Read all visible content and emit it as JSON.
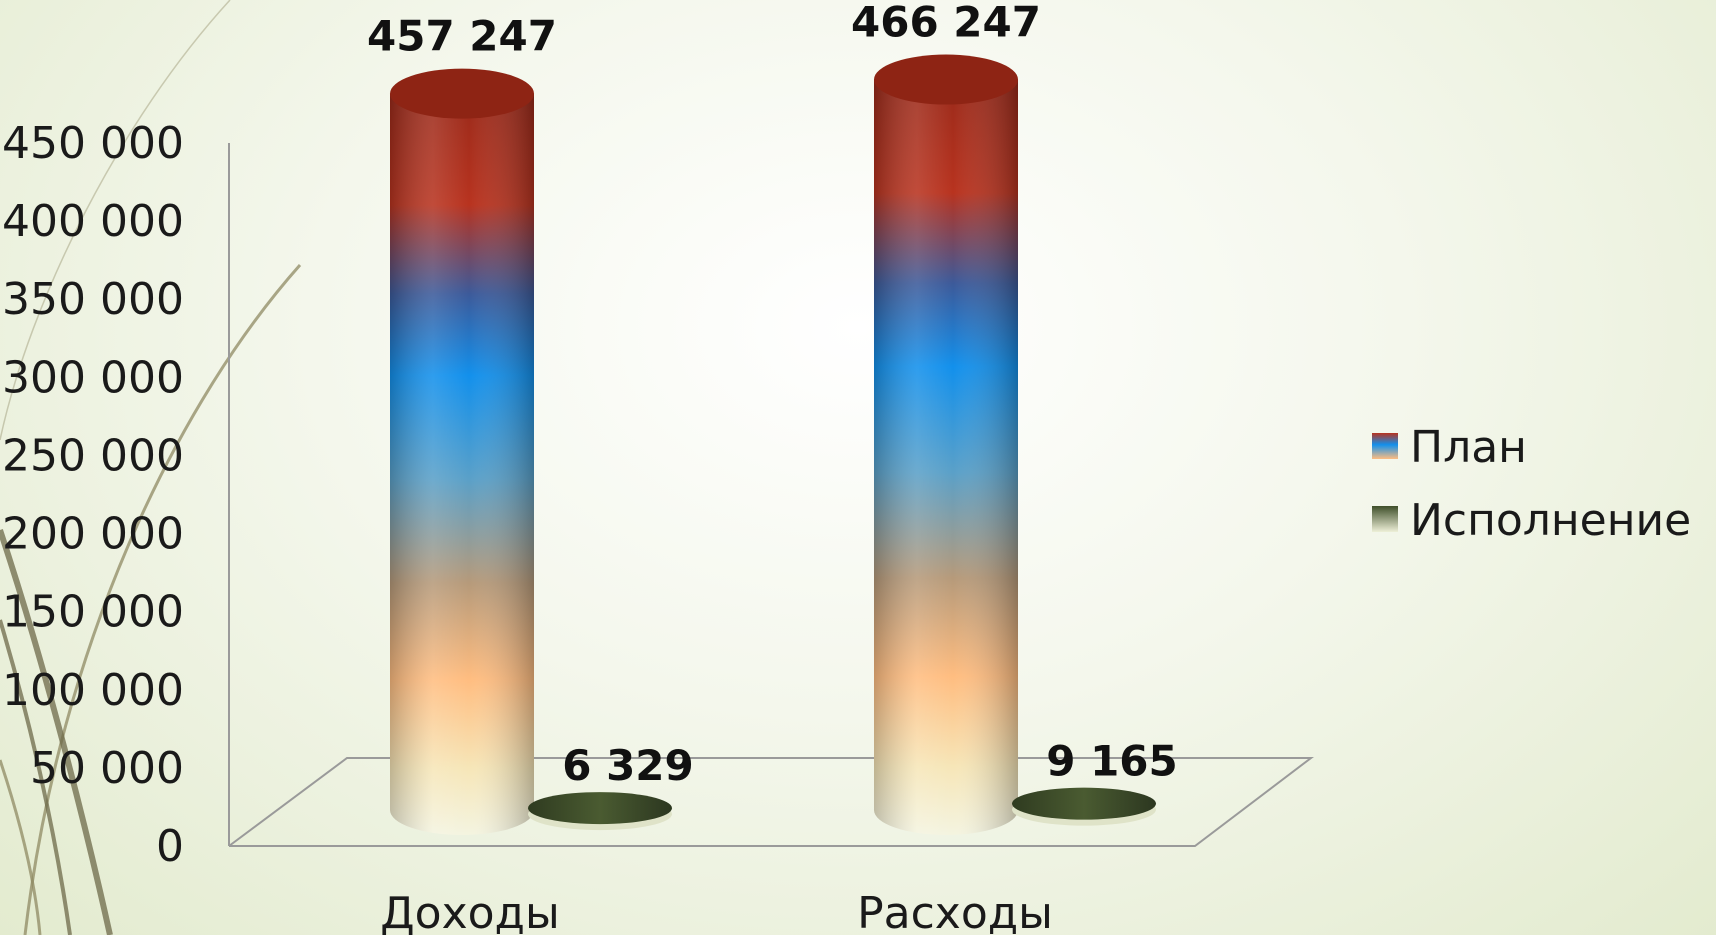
{
  "chart_data": {
    "type": "bar",
    "categories": [
      "Доходы",
      "Расходы"
    ],
    "series": [
      {
        "name": "План",
        "values": [
          457247,
          466247
        ],
        "labels": [
          "457 247",
          "466 247"
        ]
      },
      {
        "name": "Исполнение",
        "values": [
          6329,
          9165
        ],
        "labels": [
          "6 329",
          "9 165"
        ]
      }
    ],
    "yticks": [
      "0",
      "50 000",
      "100 000",
      "150 000",
      "200 000",
      "250 000",
      "300 000",
      "350 000",
      "400 000",
      "450 000"
    ],
    "ylim": [
      0,
      450000
    ],
    "legend_position": "right",
    "grid": false,
    "colors": {
      "plan_top": "#a8301e",
      "plan_mid": "#1f8fe0",
      "plan_low": "#f5b878",
      "plan_base": "#f3f1d8",
      "execution": "#3f4f2a"
    }
  }
}
